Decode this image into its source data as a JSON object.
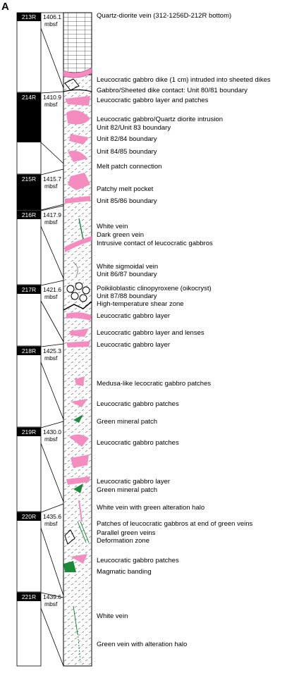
{
  "panel_label": "A",
  "cores": [
    {
      "label": "213R",
      "depth": "1406.1",
      "unit": "mbsf"
    },
    {
      "label": "214R",
      "depth": "1410.9",
      "unit": "mbsf"
    },
    {
      "label": "215R",
      "depth": "1415.7",
      "unit": "mbsf"
    },
    {
      "label": "216R",
      "depth": "1417.9",
      "unit": "mbsf"
    },
    {
      "label": "217R",
      "depth": "1421.6",
      "unit": "mbsf"
    },
    {
      "label": "218R",
      "depth": "1425.3",
      "unit": "mbsf"
    },
    {
      "label": "219R",
      "depth": "1430.0",
      "unit": "mbsf"
    },
    {
      "label": "220R",
      "depth": "1435.6",
      "unit": "mbsf"
    },
    {
      "label": "221R",
      "depth": "1439.6",
      "unit": "mbsf"
    }
  ],
  "annotations": [
    "Quartz-diorite vein (312-1256D-212R bottom)",
    "Leucocratic gabbro dike (1 cm) intruded into sheeted dikes",
    "Gabbro/Sheeted dike contact: Unit 80/81 boundary",
    "Leucocratic gabbro layer and patches",
    "Leucocratic gabbro/Quartz diorite intrusion",
    "Unit 82/Unit 83 boundary",
    "Unit 82/84 boundary",
    "Unit 84/85 boundary",
    "Melt patch connection",
    "Patchy melt pocket",
    "Unit 85/86 boundary",
    "White vein",
    "Dark green vein",
    "Intrusive contact of leucocratic gabbros",
    "White sigmoidal vein",
    "Unit 86/87 boundary",
    "Poikiloblastic clinopyroxene (oikocryst)",
    "Unit 87/88 boundary",
    "High-temperature shear zone",
    "Leucocratic gabbro layer",
    "Leucocratic gabbro layer and lenses",
    "Leucocratic gabbro layer",
    "Medusa-like lecocratic gabbro patches",
    "Leucocratic gabbro patches",
    "Green mineral patch",
    "Leucocratic gabbro patches",
    "Leucocratic gabbro layer",
    "Green mineral patch",
    "White vein with green alteration halo",
    "Patches of leucocratic gabbros at end of green veins",
    "Parallel green veins",
    "Deformation zone",
    "Leucocratic gabbro patches",
    "Magmatic banding",
    "White vein",
    "Green vein with alteration halo"
  ]
}
